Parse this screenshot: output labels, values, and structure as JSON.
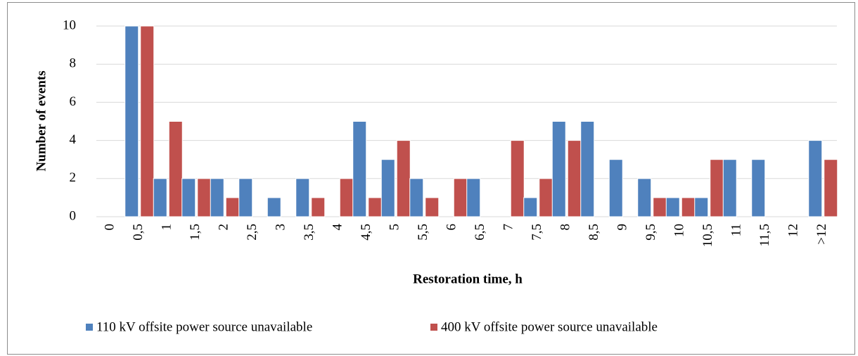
{
  "chart_data": {
    "type": "bar",
    "xlabel": "Restoration time, h",
    "ylabel": "Number of events",
    "categories": [
      "0",
      "0,5",
      "1",
      "1,5",
      "2",
      "2,5",
      "3",
      "3,5",
      "4",
      "4,5",
      "5",
      "5,5",
      "6",
      "6,5",
      "7",
      "7,5",
      "8",
      "8,5",
      "9",
      "9,5",
      "10",
      "10,5",
      "11",
      "11,5",
      "12",
      ">12"
    ],
    "series": [
      {
        "name": "110 kV offsite power source unavailable",
        "color": "#4f81bd",
        "values": [
          0,
          10,
          2,
          2,
          2,
          2,
          1,
          2,
          0,
          5,
          3,
          2,
          0,
          2,
          0,
          1,
          5,
          5,
          3,
          2,
          1,
          1,
          3,
          3,
          0,
          4
        ]
      },
      {
        "name": "400 kV offsite power source unavailable",
        "color": "#c0504d",
        "values": [
          0,
          10,
          5,
          2,
          1,
          0,
          0,
          1,
          2,
          1,
          4,
          1,
          2,
          0,
          4,
          2,
          4,
          0,
          0,
          1,
          1,
          3,
          0,
          0,
          0,
          3
        ]
      }
    ],
    "ylim": [
      0,
      10
    ],
    "yticks": [
      0,
      2,
      4,
      6,
      8,
      10
    ],
    "grid": true,
    "legend": "bottom"
  }
}
